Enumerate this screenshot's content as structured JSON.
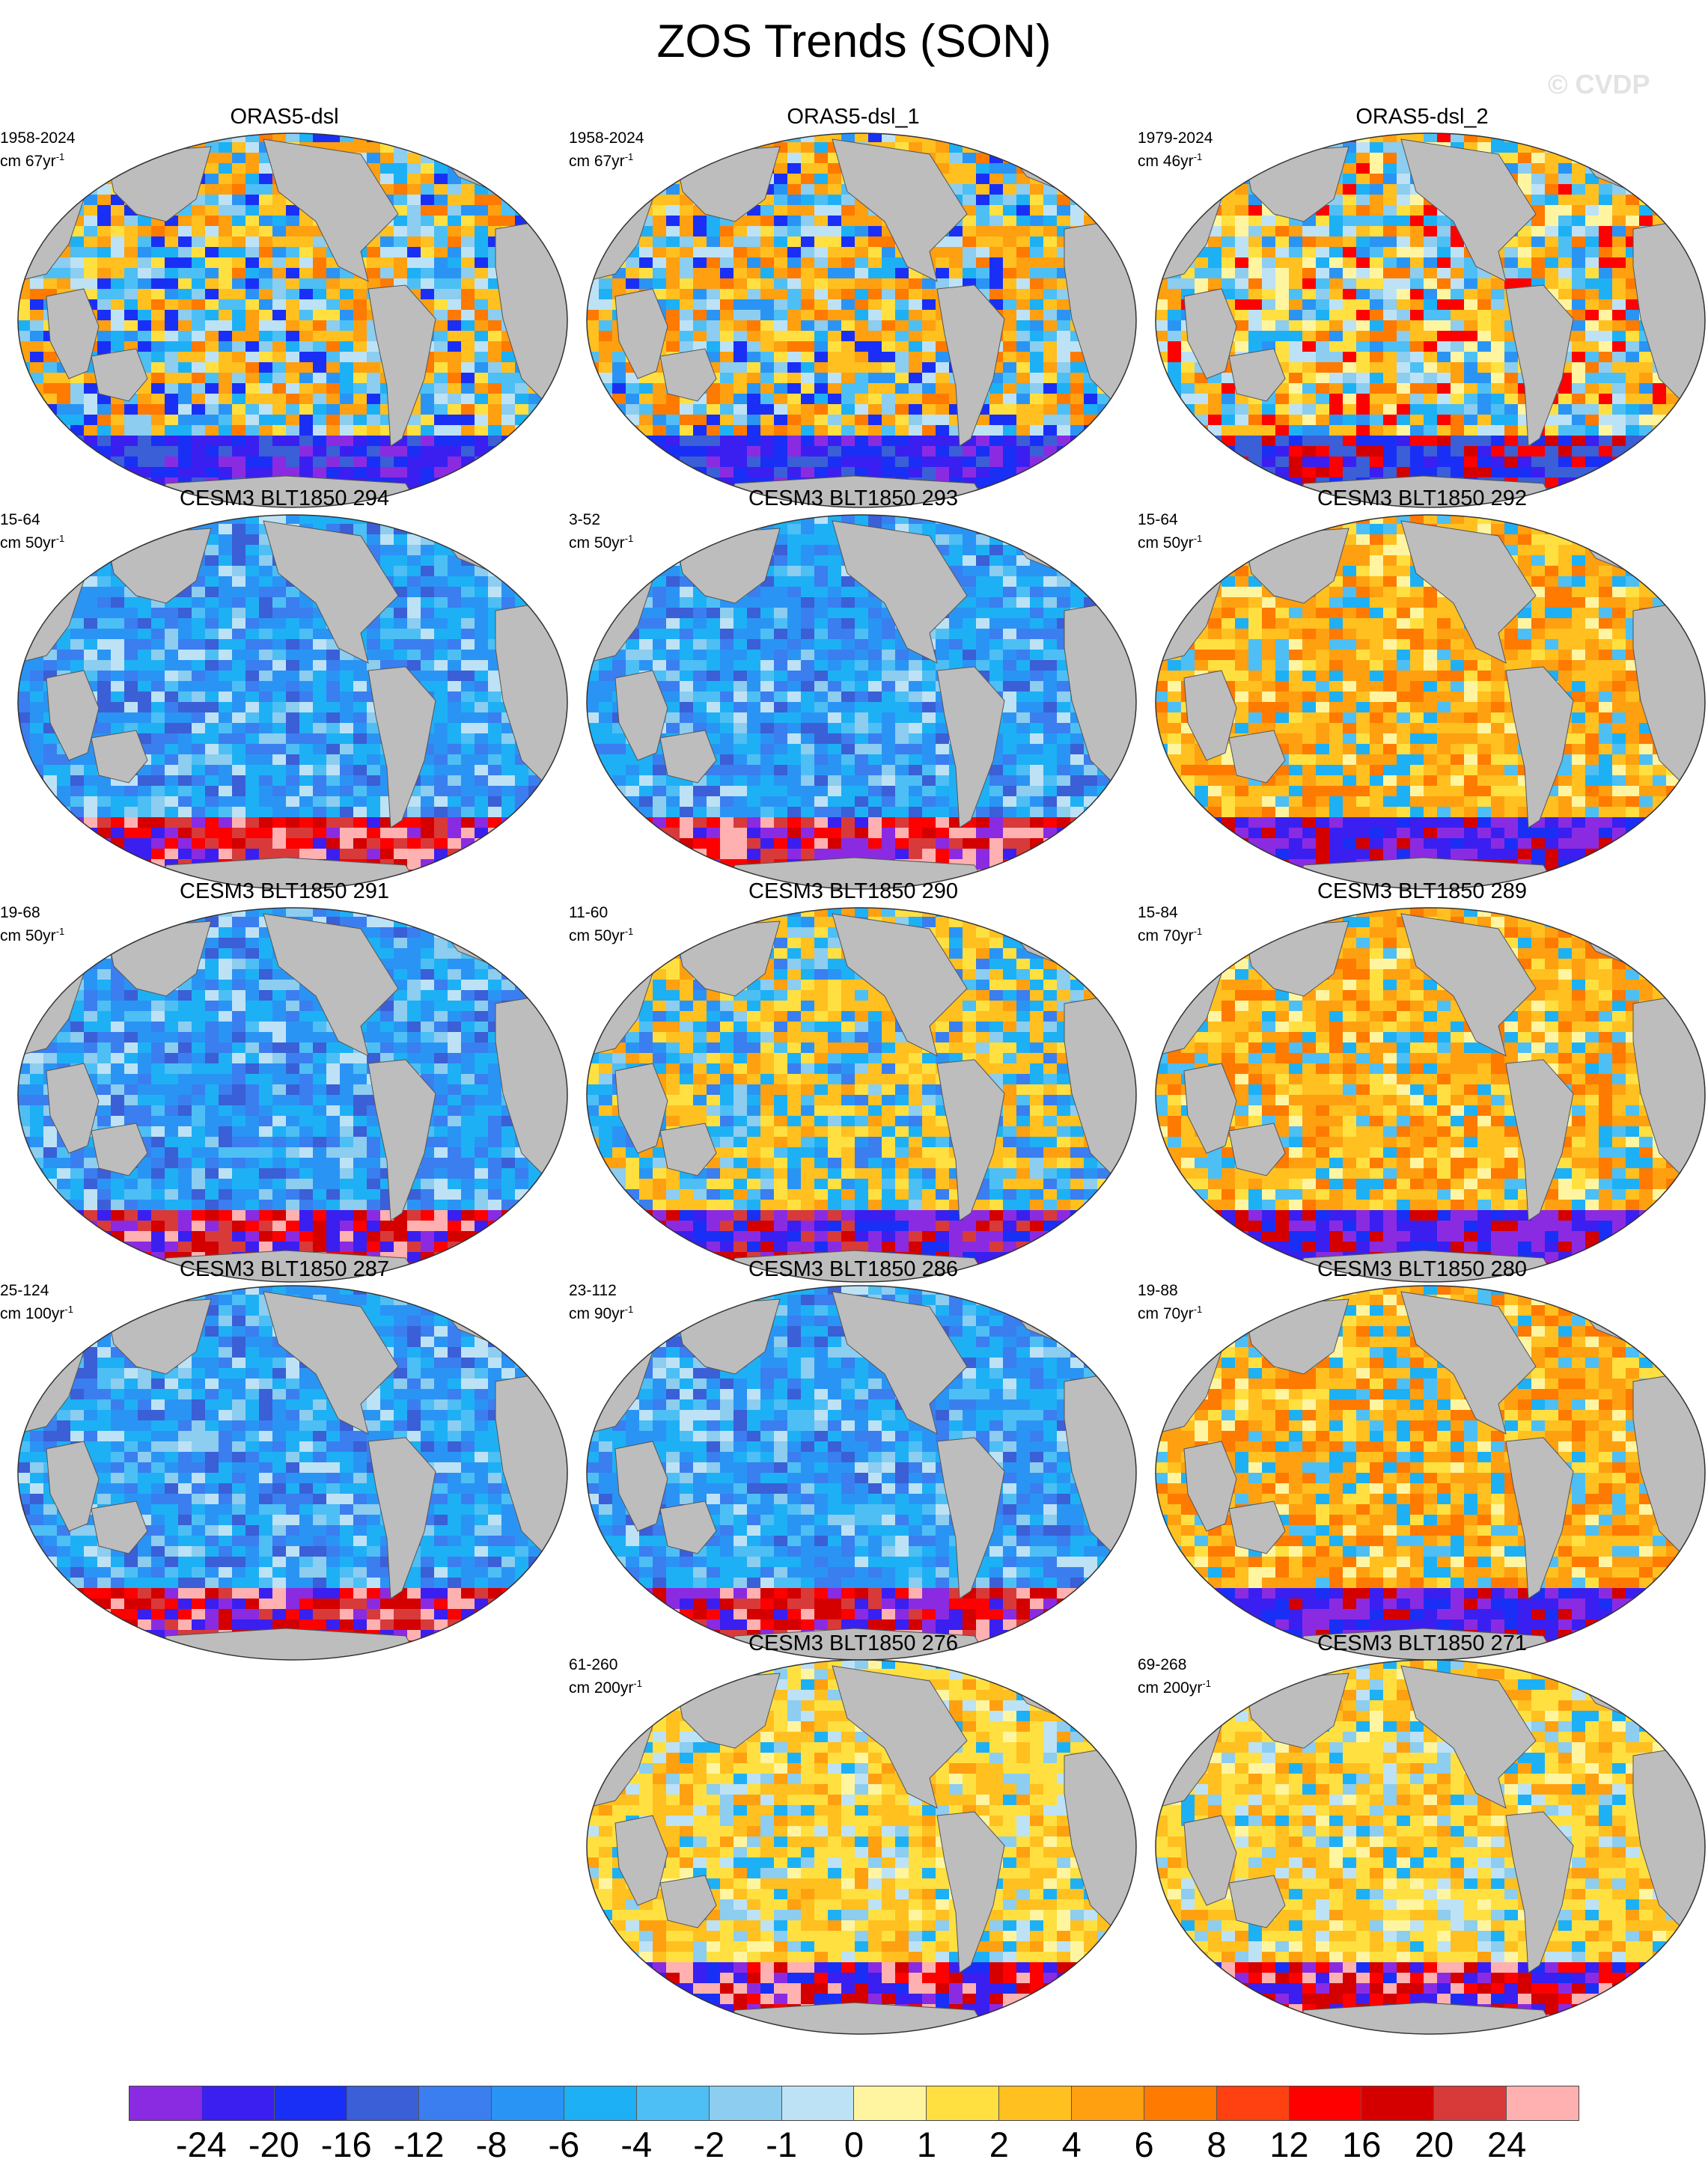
{
  "title": "ZOS Trends (SON)",
  "watermark": "© CVDP",
  "panels": [
    {
      "title": "ORAS5-dsl",
      "period": "1958-2024",
      "units": "cm 67yr",
      "style": "obs"
    },
    {
      "title": "ORAS5-dsl_1",
      "period": "1958-2024",
      "units": "cm 67yr",
      "style": "obs"
    },
    {
      "title": "ORAS5-dsl_2",
      "period": "1979-2024",
      "units": "cm 46yr",
      "style": "obs2"
    },
    {
      "title": "CESM3 BLT1850 294",
      "period": "15-64",
      "units": "cm 50yr",
      "style": "cool"
    },
    {
      "title": "CESM3 BLT1850 293",
      "period": "3-52",
      "units": "cm 50yr",
      "style": "cool"
    },
    {
      "title": "CESM3 BLT1850 292",
      "period": "15-64",
      "units": "cm 50yr",
      "style": "warm"
    },
    {
      "title": "CESM3 BLT1850 291",
      "period": "19-68",
      "units": "cm 50yr",
      "style": "cool"
    },
    {
      "title": "CESM3 BLT1850 290",
      "period": "11-60",
      "units": "cm 50yr",
      "style": "mixed"
    },
    {
      "title": "CESM3 BLT1850 289",
      "period": "15-84",
      "units": "cm 70yr",
      "style": "warm"
    },
    {
      "title": "CESM3 BLT1850 287",
      "period": "25-124",
      "units": "cm 100yr",
      "style": "cool"
    },
    {
      "title": "CESM3 BLT1850 286",
      "period": "23-112",
      "units": "cm 90yr",
      "style": "cool"
    },
    {
      "title": "CESM3 BLT1850 280",
      "period": "19-88",
      "units": "cm 70yr",
      "style": "warm"
    },
    null,
    {
      "title": "CESM3 BLT1850 276",
      "period": "61-260",
      "units": "cm 200yr",
      "style": "yellow"
    },
    {
      "title": "CESM3 BLT1850 271",
      "period": "69-268",
      "units": "cm 200yr",
      "style": "yellow"
    }
  ],
  "units_superscript": "-1",
  "colorbar": {
    "colors": [
      "#8a2be2",
      "#3a1ff0",
      "#1a2ff5",
      "#3a5fd6",
      "#3a7ef0",
      "#2a94f5",
      "#1eb0f5",
      "#4dbff5",
      "#8ccdf0",
      "#bde2f5",
      "#fff5a0",
      "#ffe040",
      "#ffc020",
      "#ffa010",
      "#ff7a00",
      "#ff4010",
      "#ff0000",
      "#d40000",
      "#d83a3a",
      "#ffb0b0"
    ],
    "labels": [
      "-24",
      "-20",
      "-16",
      "-12",
      "-8",
      "-6",
      "-4",
      "-2",
      "-1",
      "0",
      "1",
      "2",
      "4",
      "6",
      "8",
      "12",
      "16",
      "20",
      "24"
    ]
  }
}
